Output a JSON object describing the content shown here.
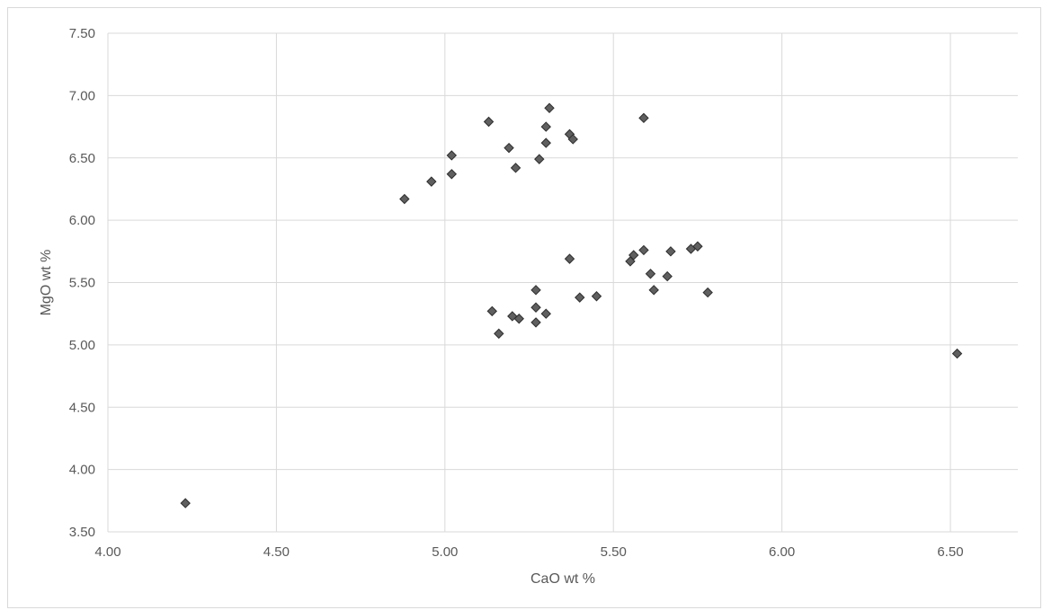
{
  "chart_data": {
    "type": "scatter",
    "title": "",
    "xlabel": "CaO wt %",
    "ylabel": "MgO wt %",
    "xlim": [
      4.0,
      6.7
    ],
    "ylim": [
      3.5,
      7.5
    ],
    "x_ticks": [
      "4.00",
      "4.50",
      "5.00",
      "5.50",
      "6.00",
      "6.50"
    ],
    "y_ticks": [
      "3.50",
      "4.00",
      "4.50",
      "5.00",
      "5.50",
      "6.00",
      "6.50",
      "7.00",
      "7.50"
    ],
    "x_tick_values": [
      4.0,
      4.5,
      5.0,
      5.5,
      6.0,
      6.5
    ],
    "y_tick_values": [
      3.5,
      4.0,
      4.5,
      5.0,
      5.5,
      6.0,
      6.5,
      7.0,
      7.5
    ],
    "grid": true,
    "legend": "none",
    "marker": "diamond",
    "marker_color": "#5f5f5f",
    "points": [
      {
        "x": 4.23,
        "y": 3.73
      },
      {
        "x": 4.88,
        "y": 6.17
      },
      {
        "x": 4.96,
        "y": 6.31
      },
      {
        "x": 5.02,
        "y": 6.52
      },
      {
        "x": 5.02,
        "y": 6.37
      },
      {
        "x": 5.13,
        "y": 6.79
      },
      {
        "x": 5.19,
        "y": 6.58
      },
      {
        "x": 5.21,
        "y": 6.42
      },
      {
        "x": 5.28,
        "y": 6.49
      },
      {
        "x": 5.3,
        "y": 6.62
      },
      {
        "x": 5.3,
        "y": 6.75
      },
      {
        "x": 5.31,
        "y": 6.9
      },
      {
        "x": 5.37,
        "y": 6.69
      },
      {
        "x": 5.38,
        "y": 6.65
      },
      {
        "x": 5.59,
        "y": 6.82
      },
      {
        "x": 5.14,
        "y": 5.27
      },
      {
        "x": 5.16,
        "y": 5.09
      },
      {
        "x": 5.2,
        "y": 5.23
      },
      {
        "x": 5.22,
        "y": 5.21
      },
      {
        "x": 5.27,
        "y": 5.44
      },
      {
        "x": 5.27,
        "y": 5.3
      },
      {
        "x": 5.27,
        "y": 5.18
      },
      {
        "x": 5.3,
        "y": 5.25
      },
      {
        "x": 5.37,
        "y": 5.69
      },
      {
        "x": 5.4,
        "y": 5.38
      },
      {
        "x": 5.45,
        "y": 5.39
      },
      {
        "x": 5.55,
        "y": 5.67
      },
      {
        "x": 5.56,
        "y": 5.72
      },
      {
        "x": 5.59,
        "y": 5.76
      },
      {
        "x": 5.61,
        "y": 5.57
      },
      {
        "x": 5.62,
        "y": 5.44
      },
      {
        "x": 5.66,
        "y": 5.55
      },
      {
        "x": 5.67,
        "y": 5.75
      },
      {
        "x": 5.73,
        "y": 5.77
      },
      {
        "x": 5.75,
        "y": 5.79
      },
      {
        "x": 5.78,
        "y": 5.42
      },
      {
        "x": 6.52,
        "y": 4.93
      }
    ]
  }
}
